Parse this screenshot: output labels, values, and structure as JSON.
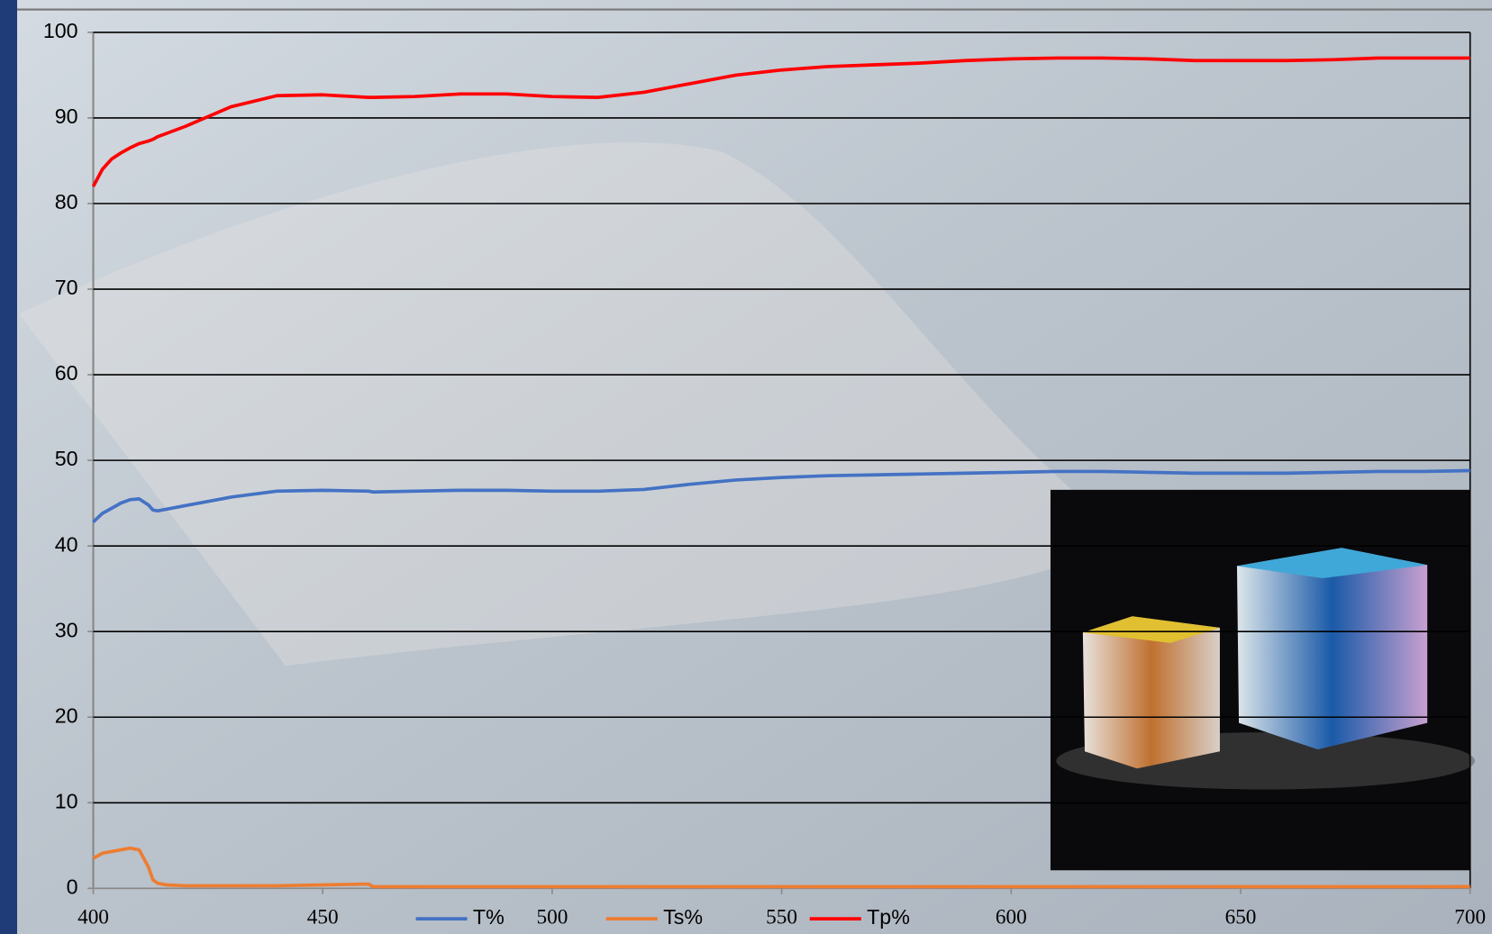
{
  "chart_data": {
    "type": "line",
    "x": [
      400,
      402,
      404,
      406,
      408,
      410,
      412,
      413,
      414,
      416,
      420,
      430,
      440,
      450,
      460,
      461,
      470,
      480,
      490,
      500,
      510,
      520,
      530,
      540,
      550,
      560,
      570,
      580,
      590,
      600,
      610,
      620,
      630,
      640,
      650,
      660,
      670,
      680,
      690,
      700
    ],
    "series": [
      {
        "name": "T%",
        "color": "#4472c4",
        "values": [
          42.8,
          43.8,
          44.4,
          45,
          45.4,
          45.5,
          44.8,
          44.2,
          44.1,
          44.3,
          44.7,
          45.7,
          46.4,
          46.5,
          46.4,
          46.3,
          46.4,
          46.5,
          46.5,
          46.4,
          46.4,
          46.6,
          47.2,
          47.7,
          48,
          48.2,
          48.3,
          48.4,
          48.5,
          48.6,
          48.7,
          48.7,
          48.6,
          48.5,
          48.5,
          48.5,
          48.6,
          48.7,
          48.7,
          48.8
        ]
      },
      {
        "name": "Ts%",
        "color": "#ed7d31",
        "values": [
          3.5,
          4.1,
          4.3,
          4.5,
          4.7,
          4.5,
          2.5,
          1,
          0.6,
          0.4,
          0.3,
          0.3,
          0.3,
          0.4,
          0.5,
          0.2,
          0.2,
          0.2,
          0.2,
          0.2,
          0.2,
          0.2,
          0.2,
          0.2,
          0.2,
          0.2,
          0.2,
          0.2,
          0.2,
          0.2,
          0.2,
          0.2,
          0.2,
          0.2,
          0.2,
          0.2,
          0.2,
          0.2,
          0.2,
          0.2
        ]
      },
      {
        "name": "Tp%",
        "color": "#ff0000",
        "values": [
          82,
          84,
          85.2,
          85.9,
          86.5,
          87,
          87.3,
          87.5,
          87.8,
          88.2,
          89,
          91.3,
          92.6,
          92.7,
          92.4,
          92.4,
          92.5,
          92.8,
          92.8,
          92.5,
          92.4,
          93,
          94,
          95,
          95.6,
          96,
          96.2,
          96.4,
          96.7,
          96.9,
          97,
          97,
          96.9,
          96.7,
          96.7,
          96.7,
          96.8,
          97,
          97,
          97
        ]
      }
    ],
    "xlim": [
      400,
      700
    ],
    "xticks": [
      400,
      450,
      500,
      550,
      600,
      650,
      700
    ],
    "ylim": [
      0,
      100
    ],
    "yticks": [
      0,
      10,
      20,
      30,
      40,
      50,
      60,
      70,
      80,
      90,
      100
    ],
    "grid": true,
    "legend": "bottom"
  }
}
